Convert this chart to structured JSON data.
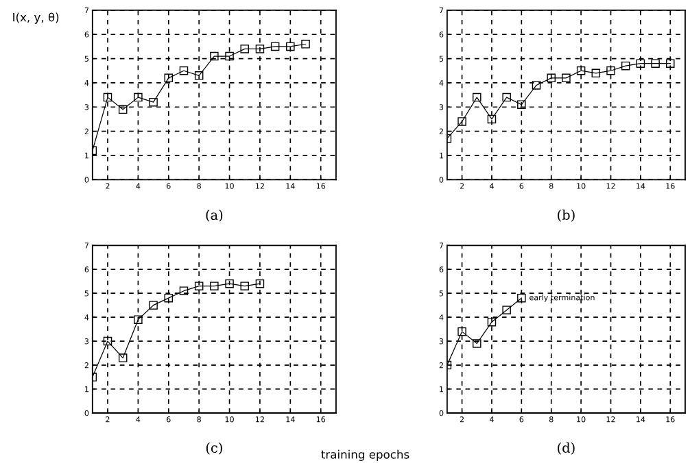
{
  "chart_data": [
    {
      "type": "line",
      "title": "(a)",
      "ylabel": "I(x, y, θ)",
      "x": [
        1,
        2,
        3,
        4,
        5,
        6,
        7,
        8,
        9,
        10,
        11,
        12,
        13,
        14,
        15
      ],
      "series": [
        {
          "color": "#000000",
          "values": [
            1.2,
            3.4,
            2.9,
            3.4,
            3.2,
            4.2,
            4.5,
            4.3,
            5.1,
            5.1,
            5.4,
            5.4,
            5.5,
            5.5,
            5.6
          ]
        }
      ],
      "xlim": [
        1,
        17
      ],
      "xticks": [
        2,
        4,
        6,
        8,
        10,
        12,
        14,
        16
      ],
      "ylim": [
        0,
        7
      ],
      "yticks": [
        0,
        1,
        2,
        3,
        4,
        5,
        6,
        7
      ],
      "grid": true,
      "marker": "square",
      "line_style": "solid"
    },
    {
      "type": "line",
      "title": "(b)",
      "x": [
        1,
        2,
        3,
        4,
        5,
        6,
        7,
        8,
        9,
        10,
        11,
        12,
        13,
        14,
        15,
        16
      ],
      "series": [
        {
          "color": "#000000",
          "values": [
            1.7,
            2.4,
            3.4,
            2.5,
            3.4,
            3.1,
            3.9,
            4.2,
            4.2,
            4.5,
            4.4,
            4.5,
            4.7,
            4.8,
            4.8,
            4.8
          ]
        }
      ],
      "xlim": [
        1,
        17
      ],
      "xticks": [
        2,
        4,
        6,
        8,
        10,
        12,
        14,
        16
      ],
      "ylim": [
        0,
        7
      ],
      "yticks": [
        0,
        1,
        2,
        3,
        4,
        5,
        6,
        7
      ],
      "grid": true,
      "marker": "square",
      "line_style": "solid"
    },
    {
      "type": "line",
      "title": "(c)",
      "xlabel": "training epochs",
      "x": [
        1,
        2,
        3,
        4,
        5,
        6,
        7,
        8,
        9,
        10,
        11,
        12
      ],
      "series": [
        {
          "color": "#000000",
          "values": [
            1.5,
            3.0,
            2.3,
            3.9,
            4.5,
            4.8,
            5.1,
            5.3,
            5.3,
            5.4,
            5.3,
            5.4
          ]
        }
      ],
      "xlim": [
        1,
        17
      ],
      "xticks": [
        2,
        4,
        6,
        8,
        10,
        12,
        14,
        16
      ],
      "ylim": [
        0,
        7
      ],
      "yticks": [
        0,
        1,
        2,
        3,
        4,
        5,
        6,
        7
      ],
      "grid": true,
      "marker": "square",
      "line_style": "solid"
    },
    {
      "type": "line",
      "title": "(d)",
      "x": [
        1,
        2,
        3,
        4,
        5,
        6
      ],
      "series": [
        {
          "color": "#000000",
          "values": [
            2.0,
            3.4,
            2.9,
            3.8,
            4.3,
            4.8
          ]
        }
      ],
      "annotations": [
        {
          "text": "early termination",
          "x": 6,
          "y": 4.8
        }
      ],
      "xlim": [
        1,
        17
      ],
      "xticks": [
        2,
        4,
        6,
        8,
        10,
        12,
        14,
        16
      ],
      "ylim": [
        0,
        7
      ],
      "yticks": [
        0,
        1,
        2,
        3,
        4,
        5,
        6,
        7
      ],
      "grid": true,
      "marker": "square",
      "line_style": "solid"
    }
  ]
}
